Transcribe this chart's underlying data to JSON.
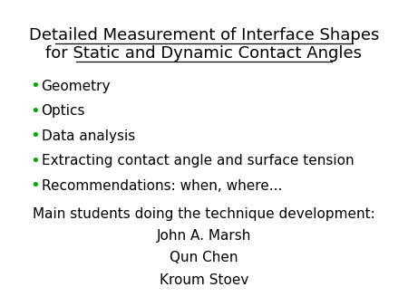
{
  "title_line1": "Detailed Measurement of Interface Shapes",
  "title_line2": "for Static and Dynamic Contact Angles",
  "bullet_color": "#00aa00",
  "bullet_items": [
    "Geometry",
    "Optics",
    "Data analysis",
    "Extracting contact angle and surface tension",
    "Recommendations: when, where..."
  ],
  "footer_line1": "Main students doing the technique development:",
  "footer_names": [
    "John A. Marsh",
    "Qun Chen",
    "Kroum Stoev"
  ],
  "bg_color": "#ffffff",
  "text_color": "#000000",
  "title_fontsize": 13,
  "bullet_fontsize": 11,
  "footer_fontsize": 11
}
